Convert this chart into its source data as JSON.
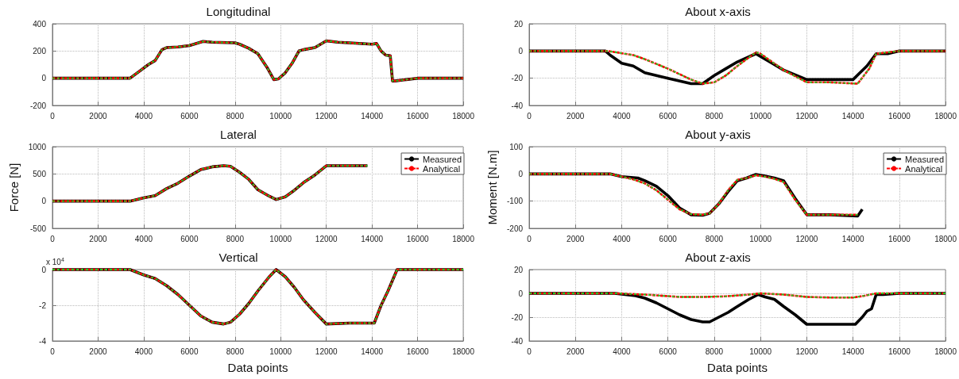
{
  "chart_data": [
    {
      "type": "line",
      "title": "Longitudinal",
      "xlim": [
        0,
        18000
      ],
      "xticks": [
        0,
        2000,
        4000,
        6000,
        8000,
        10000,
        12000,
        14000,
        16000,
        18000
      ],
      "ylim": [
        -200,
        400
      ],
      "yticks": [
        -200,
        0,
        200,
        400
      ],
      "grid": true,
      "marker": "none",
      "legend": false,
      "series": [
        {
          "color": "#000000",
          "line_style": "solid",
          "x": [
            0,
            3400,
            3800,
            4200,
            4500,
            4800,
            5000,
            5500,
            6000,
            6600,
            7000,
            8000,
            8200,
            8600,
            9000,
            9400,
            9700,
            9900,
            10200,
            10500,
            10800,
            11000,
            11500,
            12000,
            12500,
            13000,
            14000,
            14200,
            14400,
            14600,
            14800,
            14900,
            15000,
            15500,
            16000,
            18000
          ],
          "values": [
            0,
            0,
            50,
            100,
            130,
            210,
            225,
            230,
            240,
            270,
            265,
            260,
            250,
            220,
            180,
            80,
            -10,
            -5,
            40,
            110,
            200,
            210,
            225,
            275,
            265,
            260,
            250,
            255,
            200,
            170,
            165,
            -20,
            -20,
            -10,
            0,
            0
          ]
        },
        {
          "color": "#ff0000",
          "line_style": "dashed",
          "x": [
            0,
            3400,
            3800,
            4200,
            4500,
            4800,
            5000,
            5500,
            6000,
            6600,
            7000,
            8000,
            8200,
            8600,
            9000,
            9400,
            9700,
            9900,
            10200,
            10500,
            10800,
            11000,
            11500,
            12000,
            12500,
            13000,
            14000,
            14200,
            14400,
            14600,
            14800,
            14900,
            15000,
            15500,
            16000,
            18000
          ],
          "values": [
            0,
            0,
            50,
            100,
            130,
            210,
            225,
            230,
            240,
            270,
            265,
            260,
            250,
            220,
            180,
            80,
            -10,
            -5,
            40,
            110,
            200,
            210,
            225,
            275,
            265,
            260,
            250,
            255,
            200,
            170,
            165,
            -20,
            -20,
            -10,
            0,
            0
          ]
        },
        {
          "color": "#22cc22",
          "line_style": "dashed",
          "x": [
            0,
            3400,
            3800,
            4200,
            4500,
            4800,
            5000,
            5500,
            6000,
            6600,
            7000,
            8000,
            8200,
            8600,
            9000,
            9400,
            9700,
            9900,
            10200,
            10500,
            10800,
            11000,
            11500,
            12000,
            12500,
            13000,
            14000,
            14200,
            14400,
            14600,
            14800,
            14900,
            15000,
            15500,
            16000,
            18000
          ],
          "values": [
            0,
            0,
            50,
            100,
            130,
            210,
            225,
            230,
            240,
            270,
            265,
            260,
            250,
            220,
            180,
            80,
            -10,
            -5,
            40,
            110,
            200,
            210,
            225,
            275,
            265,
            260,
            250,
            255,
            200,
            170,
            165,
            -20,
            -20,
            -10,
            0,
            0
          ]
        }
      ]
    },
    {
      "type": "line",
      "title": "Lateral",
      "ylabel": "Force [N]",
      "xlim": [
        0,
        18000
      ],
      "xticks": [
        0,
        2000,
        4000,
        6000,
        8000,
        10000,
        12000,
        14000,
        16000,
        18000
      ],
      "ylim": [
        -500,
        1000
      ],
      "yticks": [
        -500,
        0,
        500,
        1000
      ],
      "grid": true,
      "marker": "none",
      "legend": "top right",
      "series": [
        {
          "name": "Measured",
          "color": "#000000",
          "line_style": "solid",
          "x": [
            0,
            3400,
            4000,
            4500,
            5000,
            5500,
            6000,
            6500,
            7000,
            7500,
            7800,
            8200,
            8600,
            9000,
            9500,
            9800,
            10200,
            10600,
            11000,
            11500,
            12000,
            12500,
            13800
          ],
          "values": [
            0,
            0,
            60,
            100,
            230,
            330,
            460,
            580,
            630,
            650,
            640,
            530,
            400,
            210,
            90,
            30,
            80,
            200,
            340,
            480,
            650,
            650,
            650
          ]
        },
        {
          "name": "Analytical",
          "color": "#ff0000",
          "line_style": "dashed",
          "x": [
            0,
            3400,
            4000,
            4500,
            5000,
            5500,
            6000,
            6500,
            7000,
            7500,
            7800,
            8200,
            8600,
            9000,
            9500,
            9800,
            10200,
            10600,
            11000,
            11500,
            12000,
            12500,
            13800
          ],
          "values": [
            0,
            0,
            60,
            100,
            230,
            330,
            460,
            580,
            630,
            650,
            640,
            530,
            400,
            210,
            90,
            30,
            80,
            200,
            340,
            480,
            650,
            650,
            650
          ]
        },
        {
          "color": "#22cc22",
          "line_style": "dashed",
          "x": [
            0,
            3400,
            4000,
            4500,
            5000,
            5500,
            6000,
            6500,
            7000,
            7500,
            7800,
            8200,
            8600,
            9000,
            9500,
            9800,
            10200,
            10600,
            11000,
            11500,
            12000,
            12500,
            13800
          ],
          "values": [
            0,
            0,
            60,
            100,
            230,
            330,
            460,
            580,
            630,
            650,
            640,
            530,
            400,
            210,
            90,
            30,
            80,
            200,
            340,
            480,
            650,
            650,
            650
          ]
        }
      ]
    },
    {
      "type": "line",
      "title": "Vertical",
      "xlabel": "Data points",
      "annotations": [
        "x 10$^{4}$"
      ],
      "xlim": [
        0,
        18000
      ],
      "xticks": [
        0,
        2000,
        4000,
        6000,
        8000,
        10000,
        12000,
        14000,
        16000,
        18000
      ],
      "ylim": [
        -4,
        0
      ],
      "yticks": [
        -4,
        -2,
        0
      ],
      "grid": true,
      "marker": "none",
      "legend": false,
      "series": [
        {
          "color": "#000000",
          "line_style": "solid",
          "x": [
            0,
            3400,
            4000,
            4500,
            5000,
            5500,
            6000,
            6500,
            7000,
            7500,
            7800,
            8200,
            8600,
            9000,
            9500,
            9800,
            10200,
            10600,
            11000,
            11500,
            12000,
            13000,
            14100,
            14400,
            14700,
            14900,
            15100,
            16000,
            18000
          ],
          "values": [
            0,
            0,
            -0.3,
            -0.5,
            -0.9,
            -1.4,
            -2.0,
            -2.6,
            -2.95,
            -3.05,
            -2.95,
            -2.5,
            -1.9,
            -1.2,
            -0.4,
            0,
            -0.4,
            -1.0,
            -1.7,
            -2.4,
            -3.05,
            -3.0,
            -3.0,
            -2.0,
            -1.2,
            -0.6,
            0,
            0,
            0
          ]
        },
        {
          "color": "#ff0000",
          "line_style": "dashed",
          "x": [
            0,
            3400,
            4000,
            4500,
            5000,
            5500,
            6000,
            6500,
            7000,
            7500,
            7800,
            8200,
            8600,
            9000,
            9500,
            9800,
            10200,
            10600,
            11000,
            11500,
            12000,
            13000,
            14100,
            14400,
            14700,
            14900,
            15100,
            16000,
            18000
          ],
          "values": [
            0,
            0,
            -0.3,
            -0.5,
            -0.9,
            -1.4,
            -2.0,
            -2.6,
            -2.95,
            -3.05,
            -2.95,
            -2.5,
            -1.9,
            -1.2,
            -0.4,
            0,
            -0.4,
            -1.0,
            -1.7,
            -2.4,
            -3.05,
            -3.0,
            -3.0,
            -2.0,
            -1.2,
            -0.6,
            0,
            0,
            0
          ]
        },
        {
          "color": "#22cc22",
          "line_style": "dashed",
          "x": [
            0,
            3400,
            4000,
            4500,
            5000,
            5500,
            6000,
            6500,
            7000,
            7500,
            7800,
            8200,
            8600,
            9000,
            9500,
            9800,
            10200,
            10600,
            11000,
            11500,
            12000,
            13000,
            14100,
            14400,
            14700,
            14900,
            15100,
            16000,
            18000
          ],
          "values": [
            0,
            0,
            -0.3,
            -0.5,
            -0.9,
            -1.4,
            -2.0,
            -2.6,
            -2.95,
            -3.05,
            -2.95,
            -2.5,
            -1.9,
            -1.2,
            -0.4,
            0,
            -0.4,
            -1.0,
            -1.7,
            -2.4,
            -3.05,
            -3.0,
            -3.0,
            -2.0,
            -1.2,
            -0.6,
            0,
            0,
            0
          ]
        }
      ]
    },
    {
      "type": "line",
      "title": "About x-axis",
      "xlim": [
        0,
        18000
      ],
      "xticks": [
        0,
        2000,
        4000,
        6000,
        8000,
        10000,
        12000,
        14000,
        16000,
        18000
      ],
      "ylim": [
        -40,
        20
      ],
      "yticks": [
        -40,
        -20,
        0,
        20
      ],
      "grid": true,
      "marker": "none",
      "legend": false,
      "series": [
        {
          "color": "#000000",
          "line_style": "solid",
          "x": [
            0,
            3300,
            3500,
            4000,
            4500,
            5000,
            6000,
            7000,
            7500,
            8000,
            8500,
            9000,
            9800,
            10000,
            10500,
            11000,
            12000,
            13000,
            14000,
            14300,
            14600,
            15000,
            15500,
            16000,
            18000
          ],
          "values": [
            0,
            0,
            -3,
            -9,
            -11,
            -16,
            -20,
            -24,
            -24,
            -18,
            -13,
            -8,
            -2,
            -4,
            -9,
            -14,
            -21,
            -21,
            -21,
            -16,
            -11,
            -2,
            -2,
            0,
            0
          ]
        },
        {
          "color": "#ff0000",
          "line_style": "dashed",
          "x": [
            0,
            3400,
            4500,
            5000,
            6000,
            7000,
            7500,
            8000,
            8500,
            9000,
            9800,
            10000,
            10500,
            11000,
            12000,
            13000,
            14200,
            14700,
            15000,
            16000,
            18000
          ],
          "values": [
            0,
            0,
            -3,
            -6,
            -13,
            -21,
            -24,
            -23,
            -18,
            -11,
            -1,
            -2,
            -8,
            -14,
            -23,
            -23,
            -24,
            -13,
            -2,
            0,
            0
          ]
        },
        {
          "color": "#22cc22",
          "line_style": "dashed",
          "x": [
            0,
            3400,
            4500,
            5000,
            6000,
            7000,
            7500,
            8000,
            8500,
            9000,
            9800,
            10000,
            10500,
            11000,
            12000,
            13000,
            14200,
            14700,
            15000,
            16000,
            18000
          ],
          "values": [
            0,
            0,
            -3,
            -6,
            -13,
            -21,
            -24,
            -23,
            -18,
            -11,
            -1,
            -2,
            -8,
            -14,
            -23,
            -23,
            -24,
            -13,
            -2,
            0,
            0
          ]
        }
      ]
    },
    {
      "type": "line",
      "title": "About y-axis",
      "ylabel": "Moment [N.m]",
      "xlim": [
        0,
        18000
      ],
      "xticks": [
        0,
        2000,
        4000,
        6000,
        8000,
        10000,
        12000,
        14000,
        16000,
        18000
      ],
      "ylim": [
        -200,
        100
      ],
      "yticks": [
        -200,
        -100,
        0,
        100
      ],
      "grid": true,
      "marker": "none",
      "legend": "top right",
      "series": [
        {
          "name": "Measured",
          "color": "#000000",
          "line_style": "solid",
          "x": [
            0,
            3500,
            4000,
            4700,
            5000,
            5500,
            6000,
            6500,
            7000,
            7500,
            7800,
            8200,
            8600,
            9000,
            9400,
            9800,
            10200,
            10600,
            11000,
            11500,
            12000,
            13000,
            14200,
            14400
          ],
          "values": [
            0,
            0,
            -10,
            -15,
            -25,
            -45,
            -80,
            -125,
            -150,
            -152,
            -145,
            -110,
            -65,
            -25,
            -15,
            -2,
            -8,
            -15,
            -25,
            -90,
            -150,
            -150,
            -155,
            -130
          ]
        },
        {
          "name": "Analytical",
          "color": "#ff0000",
          "line_style": "dashed",
          "x": [
            0,
            3500,
            4000,
            4500,
            5000,
            5500,
            6000,
            6500,
            7000,
            7500,
            7800,
            8200,
            8600,
            9000,
            9400,
            9800,
            10200,
            10600,
            11000,
            11500,
            12000,
            13000,
            14200
          ],
          "values": [
            0,
            0,
            -10,
            -20,
            -35,
            -60,
            -95,
            -130,
            -148,
            -150,
            -145,
            -110,
            -60,
            -22,
            -15,
            -5,
            -10,
            -18,
            -30,
            -95,
            -150,
            -150,
            -150
          ]
        },
        {
          "color": "#22cc22",
          "line_style": "dashed",
          "x": [
            0,
            3500,
            4000,
            4500,
            5000,
            5500,
            6000,
            6500,
            7000,
            7500,
            7800,
            8200,
            8600,
            9000,
            9400,
            9800,
            10200,
            10600,
            11000,
            11500,
            12000,
            13000,
            14200
          ],
          "values": [
            0,
            0,
            -10,
            -20,
            -35,
            -60,
            -95,
            -130,
            -148,
            -150,
            -145,
            -110,
            -60,
            -22,
            -15,
            -5,
            -10,
            -18,
            -30,
            -95,
            -150,
            -150,
            -150
          ]
        }
      ]
    },
    {
      "type": "line",
      "title": "About z-axis",
      "xlabel": "Data points",
      "xlim": [
        0,
        18000
      ],
      "xticks": [
        0,
        2000,
        4000,
        6000,
        8000,
        10000,
        12000,
        14000,
        16000,
        18000
      ],
      "ylim": [
        -40,
        20
      ],
      "yticks": [
        -40,
        -20,
        0,
        20
      ],
      "grid": true,
      "marker": "none",
      "legend": false,
      "series": [
        {
          "color": "#000000",
          "line_style": "solid",
          "x": [
            0,
            3700,
            4600,
            5000,
            5500,
            6000,
            6500,
            7000,
            7500,
            7800,
            8200,
            8600,
            9000,
            9500,
            9900,
            10200,
            10600,
            11000,
            11500,
            12000,
            13000,
            14100,
            14400,
            14600,
            14800,
            15000,
            15300,
            16000,
            18000
          ],
          "values": [
            0,
            0,
            -2,
            -4,
            -8,
            -13,
            -18,
            -22,
            -24,
            -24,
            -20,
            -16,
            -11,
            -5,
            -1,
            -3,
            -5,
            -11,
            -18,
            -26,
            -26,
            -26,
            -20,
            -15,
            -13,
            -1,
            -1,
            0,
            0
          ]
        },
        {
          "color": "#ff0000",
          "line_style": "dashed",
          "x": [
            0,
            3700,
            5000,
            6500,
            7500,
            8500,
            9500,
            10000,
            11000,
            12000,
            13000,
            14000,
            14500,
            15000,
            16000,
            18000
          ],
          "values": [
            0,
            0,
            -1,
            -3,
            -3,
            -2.5,
            -1,
            0,
            -1,
            -3,
            -3.5,
            -3.5,
            -2,
            0,
            0,
            0
          ]
        },
        {
          "color": "#22cc22",
          "line_style": "dashed",
          "x": [
            0,
            3700,
            5000,
            6500,
            7500,
            8500,
            9500,
            10000,
            11000,
            12000,
            13000,
            14000,
            14500,
            15000,
            16000,
            18000
          ],
          "values": [
            0,
            0,
            -1,
            -3,
            -3,
            -2.5,
            -1,
            0,
            -1,
            -3,
            -3.5,
            -3.5,
            -2,
            0,
            0,
            0
          ]
        }
      ]
    }
  ]
}
